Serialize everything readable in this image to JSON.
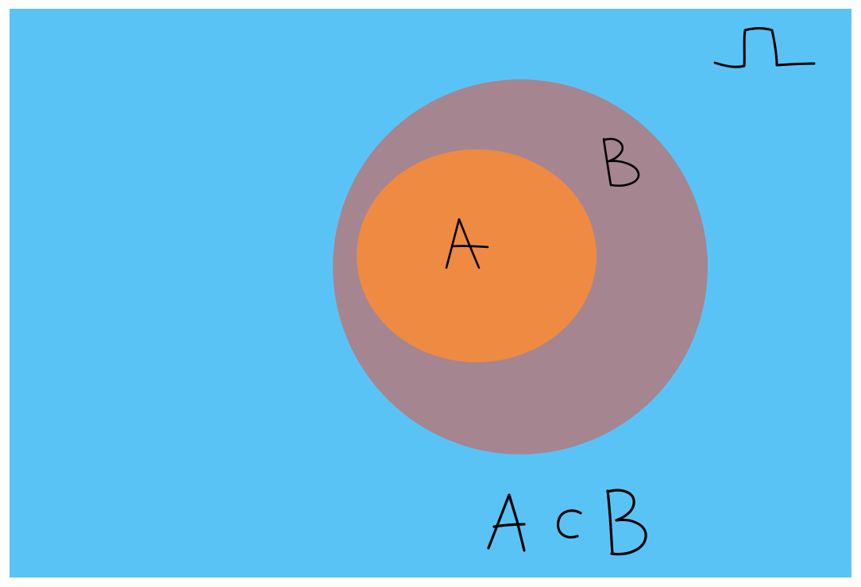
{
  "diagram": {
    "type": "venn-subset",
    "universe_label": "Ω",
    "set_outer_label": "B",
    "set_inner_label": "A",
    "caption": "A ⊂ B",
    "colors": {
      "page_background": "#ffffff",
      "universe": "#5ac3f6",
      "set_outer": "#a58590",
      "set_inner": "#ee8a42",
      "ink": "#000000"
    }
  }
}
